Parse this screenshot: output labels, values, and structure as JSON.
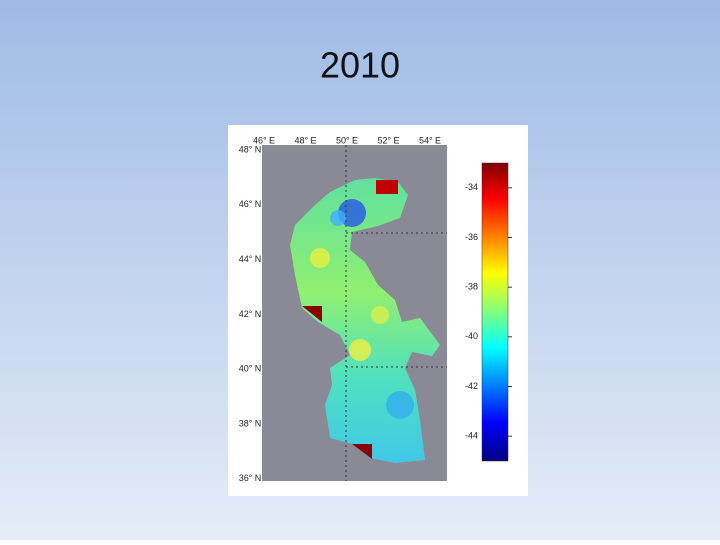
{
  "title": "2010",
  "map": {
    "lon_labels": [
      "46° E",
      "48° E",
      "50° E",
      "52° E",
      "54° E"
    ],
    "lat_labels": [
      "48° N",
      "46° N",
      "44° N",
      "42° N",
      "40° N",
      "38° N",
      "36° N"
    ]
  },
  "colorbar": {
    "lim": [
      -45,
      -33
    ],
    "ticks": [
      -34,
      -36,
      -38,
      -40,
      -42,
      -44
    ]
  }
}
